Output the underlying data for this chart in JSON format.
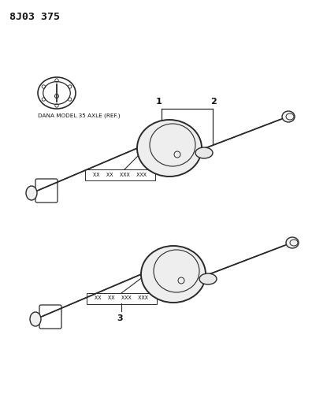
{
  "title_code": "8J03 375",
  "background_color": "#ffffff",
  "ref_label": "DANA MODEL 35 AXLE (REF.)",
  "part_numbers": "XX  XX  XXX  XXX",
  "callout_1": "1",
  "callout_2": "2",
  "callout_3": "3",
  "line_color": "#2a2a2a",
  "text_color": "#111111",
  "figsize": [
    3.96,
    5.33
  ],
  "dpi": 100
}
